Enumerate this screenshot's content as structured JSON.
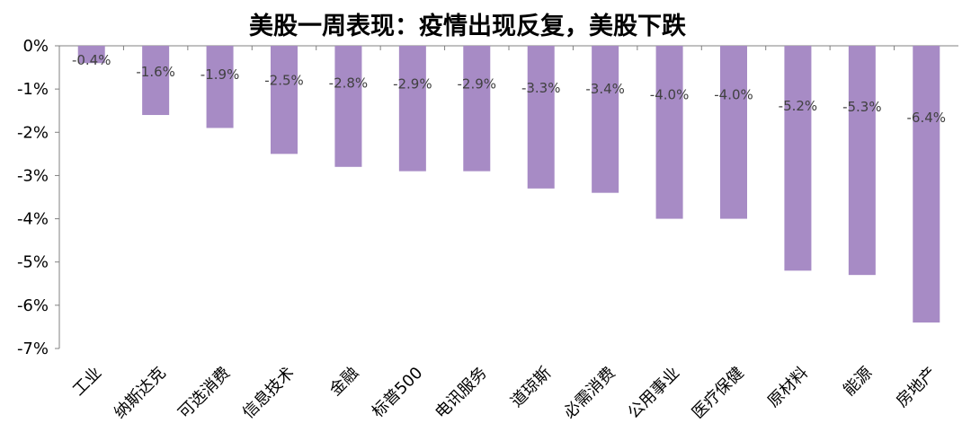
{
  "chart_data": {
    "type": "bar",
    "title": "美股一周表现：疫情出现反复，美股下跌",
    "categories": [
      "工业",
      "纳斯达克",
      "可选消费",
      "信息技术",
      "金融",
      "标普500",
      "电讯服务",
      "道琼斯",
      "必需消费",
      "公用事业",
      "医疗保健",
      "原材料",
      "能源",
      "房地产"
    ],
    "values": [
      -0.4,
      -1.6,
      -1.9,
      -2.5,
      -2.8,
      -2.9,
      -2.9,
      -3.3,
      -3.4,
      -4.0,
      -4.0,
      -5.2,
      -5.3,
      -6.4
    ],
    "data_labels": [
      "-0.4%",
      "-1.6%",
      "-1.9%",
      "-2.5%",
      "-2.8%",
      "-2.9%",
      "-2.9%",
      "-3.3%",
      "-3.4%",
      "-4.0%",
      "-4.0%",
      "-5.2%",
      "-5.3%",
      "-6.4%"
    ],
    "y_ticks": [
      0,
      -1,
      -2,
      -3,
      -4,
      -5,
      -6,
      -7
    ],
    "y_tick_labels": [
      "0%",
      "-1%",
      "-2%",
      "-3%",
      "-4%",
      "-5%",
      "-6%",
      "-7%"
    ],
    "ylim": [
      -7,
      0
    ],
    "xlabel": "",
    "ylabel": "",
    "grid": false,
    "legend": "none",
    "bar_color": "#a78bc5",
    "axis_color": "#808080"
  }
}
